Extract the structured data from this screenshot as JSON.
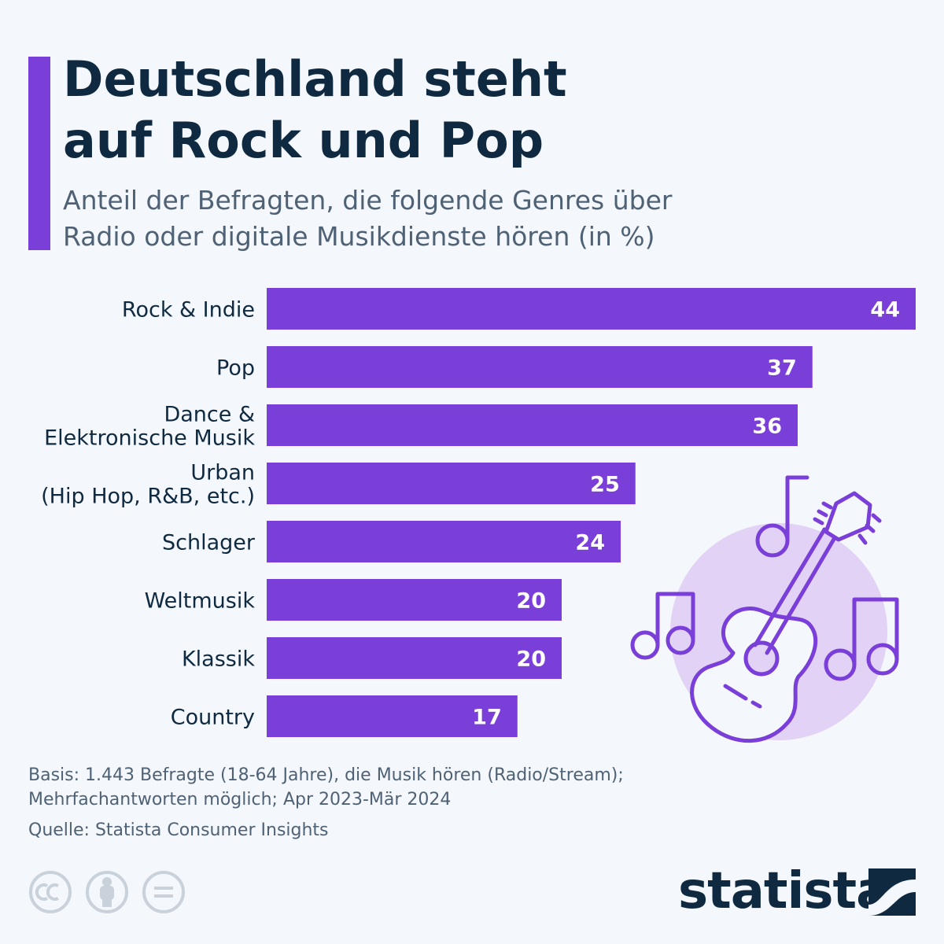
{
  "header": {
    "title_line1": "Deutschland steht",
    "title_line2": "auf Rock und Pop",
    "subtitle_line1": "Anteil der Befragten, die folgende Genres über",
    "subtitle_line2": "Radio oder digitale Musikdienste hören (in %)"
  },
  "colors": {
    "accent": "#7b3fd9",
    "bar": "#7b3fd9",
    "illustration_circle": "#e2d2f5",
    "text_dark": "#0f2a40",
    "text_muted": "#4f6275",
    "icon_grey": "#c9d1da"
  },
  "chart_data": {
    "type": "bar",
    "orientation": "horizontal",
    "categories": [
      [
        "Rock & Indie"
      ],
      [
        "Pop"
      ],
      [
        "Dance &",
        "Elektronische Musik"
      ],
      [
        "Urban",
        "(Hip Hop, R&B, etc.)"
      ],
      [
        "Schlager"
      ],
      [
        "Weltmusik"
      ],
      [
        "Klassik"
      ],
      [
        "Country"
      ]
    ],
    "values": [
      44,
      37,
      36,
      25,
      24,
      20,
      20,
      17
    ],
    "xlim": [
      0,
      44
    ],
    "grid": false,
    "legend": "none",
    "data_labels": "inside-end"
  },
  "footer": {
    "basis_line1": "Basis: 1.443 Befragte (18-64 Jahre), die Musik hören (Radio/Stream);",
    "basis_line2": "Mehrfachantworten möglich; Apr 2023-Mär 2024",
    "source": "Quelle: Statista Consumer Insights"
  },
  "branding": {
    "name": "statista",
    "license_icons": [
      "cc-icon",
      "attribution-icon",
      "no-derivatives-icon"
    ]
  }
}
